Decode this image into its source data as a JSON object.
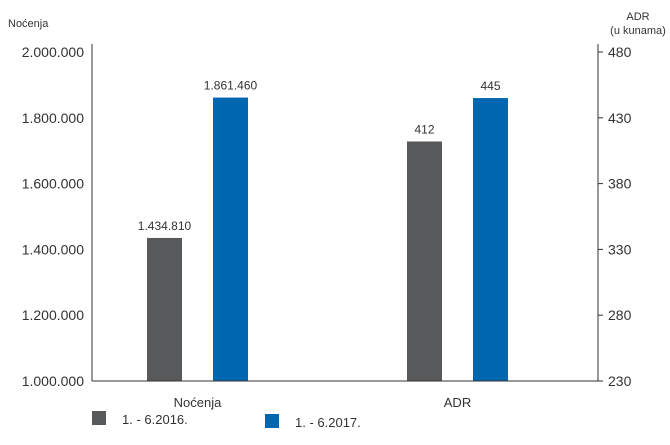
{
  "chart_data": {
    "type": "bar",
    "categories": [
      "Noćenja",
      "ADR"
    ],
    "left_axis": {
      "title": "Noćenja",
      "range": [
        1000000,
        2000000
      ],
      "ticks": [
        "1.000.000",
        "1.200.000",
        "1.400.000",
        "1.600.000",
        "1.800.000",
        "2.000.000"
      ]
    },
    "right_axis": {
      "title_line1": "ADR",
      "title_line2": "(u kunama)",
      "range": [
        230,
        480
      ],
      "ticks": [
        "230",
        "280",
        "330",
        "380",
        "430",
        "480"
      ]
    },
    "series": [
      {
        "name": "1. - 6.2016.",
        "color": "#58595b",
        "values": [
          1434810,
          412
        ],
        "labels": [
          "1.434.810",
          "412"
        ]
      },
      {
        "name": "1. - 6.2017.",
        "color": "#0066b0",
        "values": [
          1861460,
          445
        ],
        "labels": [
          "1.861.460",
          "445"
        ]
      }
    ],
    "axis_for_category": [
      "left",
      "right"
    ],
    "grid": false,
    "legend_position": "bottom-left"
  }
}
